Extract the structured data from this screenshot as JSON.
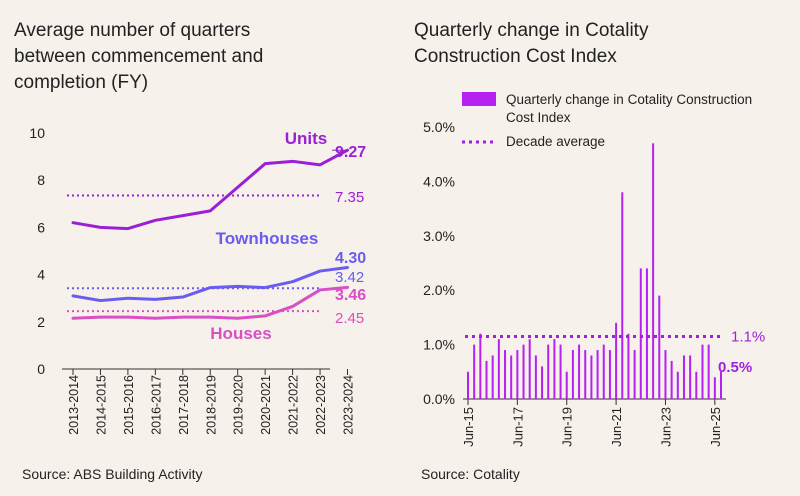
{
  "left_panel": {
    "title": "Average number of quarters between commencement and completion (FY)",
    "source": "Source: ABS Building Activity"
  },
  "right_panel": {
    "title": "Quarterly change in Cotality Construction Cost Index",
    "source": "Source: Cotality"
  },
  "colors": {
    "units": "#9b1fd6",
    "townhouses": "#6a5cf0",
    "houses": "#d94fc4",
    "bars": "#b620f2",
    "avg": "#a21fe0",
    "axis": "#333333"
  },
  "chart_data": [
    {
      "type": "line",
      "title": "Average number of quarters between commencement and completion (FY)",
      "categories": [
        "2013-2014",
        "2014-2015",
        "2015-2016",
        "2016-2017",
        "2017-2018",
        "2018-2019",
        "2019-2020",
        "2020-2021",
        "2021-2022",
        "2022-2023",
        "2023-2024"
      ],
      "ylim": [
        0,
        10
      ],
      "yticks": [
        "0",
        "2",
        "4",
        "6",
        "8",
        "10"
      ],
      "series": [
        {
          "name": "Units",
          "values": [
            6.2,
            6.0,
            5.95,
            6.3,
            6.5,
            6.7,
            7.7,
            8.7,
            8.8,
            8.65,
            9.27
          ],
          "end_label": "9.27",
          "average": 7.35,
          "average_label": "7.35"
        },
        {
          "name": "Townhouses",
          "values": [
            3.1,
            2.9,
            3.0,
            2.95,
            3.05,
            3.45,
            3.5,
            3.45,
            3.7,
            4.15,
            4.3
          ],
          "end_label": "4.30",
          "average": 3.42,
          "average_label": "3.42"
        },
        {
          "name": "Houses",
          "values": [
            2.15,
            2.2,
            2.2,
            2.15,
            2.2,
            2.2,
            2.15,
            2.25,
            2.65,
            3.35,
            3.46
          ],
          "end_label": "3.46",
          "average": 2.45,
          "average_label": "2.45"
        }
      ]
    },
    {
      "type": "bar",
      "title": "Quarterly change in Cotality Construction Cost Index",
      "legend": [
        "Quarterly change in Cotality Construction Cost Index",
        "Decade average"
      ],
      "ylim": [
        0,
        5
      ],
      "yticks": [
        "0.0%",
        "1.0%",
        "2.0%",
        "3.0%",
        "4.0%",
        "5.0%"
      ],
      "xticks": [
        {
          "index": 0,
          "label": "Jun-15"
        },
        {
          "index": 8,
          "label": "Jun-17"
        },
        {
          "index": 16,
          "label": "Jun-19"
        },
        {
          "index": 24,
          "label": "Jun-21"
        },
        {
          "index": 32,
          "label": "Jun-23"
        },
        {
          "index": 40,
          "label": "Jun-25"
        }
      ],
      "values": [
        0.5,
        1.0,
        1.2,
        0.7,
        0.8,
        1.1,
        0.9,
        0.8,
        0.9,
        1.0,
        1.1,
        0.8,
        0.6,
        1.0,
        1.1,
        1.0,
        0.5,
        0.9,
        1.0,
        0.9,
        0.8,
        0.9,
        1.0,
        0.9,
        1.4,
        3.8,
        1.2,
        0.9,
        2.4,
        2.4,
        4.7,
        1.9,
        0.9,
        0.7,
        0.5,
        0.8,
        0.8,
        0.5,
        1.0,
        1.0,
        0.4,
        0.5
      ],
      "average": 1.15,
      "average_label": "1.1%",
      "last_label": "0.5%"
    }
  ]
}
